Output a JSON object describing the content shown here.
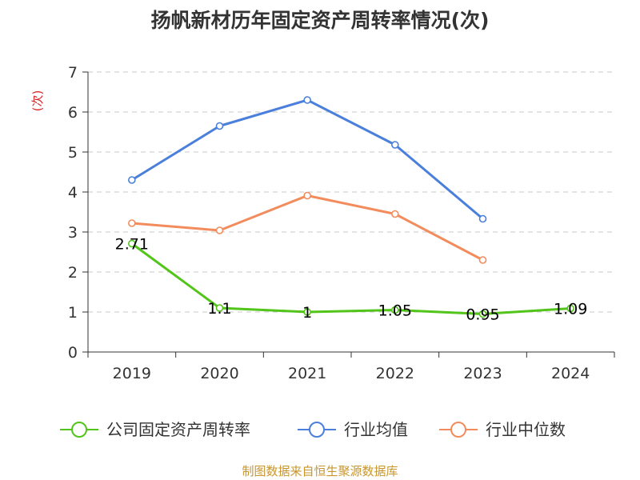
{
  "chart_data": {
    "type": "line",
    "title": "扬帆新材历年固定资产周转率情况(次)",
    "ylabel": "(次)",
    "xlabel": "",
    "categories": [
      "2019",
      "2020",
      "2021",
      "2022",
      "2023",
      "2024"
    ],
    "ylim": [
      0,
      7
    ],
    "yticks": [
      0,
      1,
      2,
      3,
      4,
      5,
      6,
      7
    ],
    "grid": true,
    "legend_position": "bottom",
    "series": [
      {
        "name": "公司固定资产周转率",
        "color": "#52c41a",
        "values": [
          2.71,
          1.1,
          1.0,
          1.05,
          0.95,
          1.09
        ],
        "labels": [
          "2.71",
          "1.1",
          "1",
          "1.05",
          "0.95",
          "1.09"
        ]
      },
      {
        "name": "行业均值",
        "color": "#4a7fdc",
        "values": [
          4.3,
          5.65,
          6.3,
          5.18,
          3.33,
          null
        ]
      },
      {
        "name": "行业中位数",
        "color": "#f28c5c",
        "values": [
          3.22,
          3.04,
          3.91,
          3.45,
          2.3,
          null
        ]
      }
    ]
  },
  "source": "制图数据来自恒生聚源数据库"
}
